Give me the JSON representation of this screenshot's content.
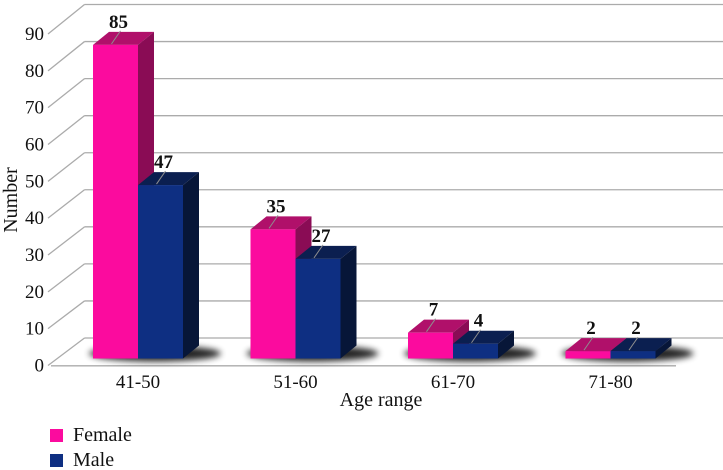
{
  "chart_data": {
    "type": "bar",
    "variant": "3d-clustered-column",
    "title": "",
    "categories": [
      "41-50",
      "51-60",
      "61-70",
      "71-80"
    ],
    "series": [
      {
        "name": "Female",
        "values": [
          85,
          35,
          7,
          2
        ],
        "color": "#fb0b9e",
        "color_top": "#b0106a",
        "color_side": "#8a0c55"
      },
      {
        "name": "Male",
        "values": [
          47,
          27,
          4,
          2
        ],
        "color": "#0e2f82",
        "color_top": "#0b1f50",
        "color_side": "#071638"
      }
    ],
    "xlabel": "Age range",
    "ylabel": "Number",
    "ylim": [
      0,
      90
    ],
    "yticks": [
      0,
      10,
      20,
      30,
      40,
      50,
      60,
      70,
      80,
      90
    ],
    "grid": true,
    "data_labels": true,
    "legend_position": "bottom-left",
    "colors": {
      "gridline": "#ababab",
      "leader_line": "#8f8f8f",
      "text": "#111111",
      "background": "#ffffff",
      "shadow": "#000000"
    }
  }
}
